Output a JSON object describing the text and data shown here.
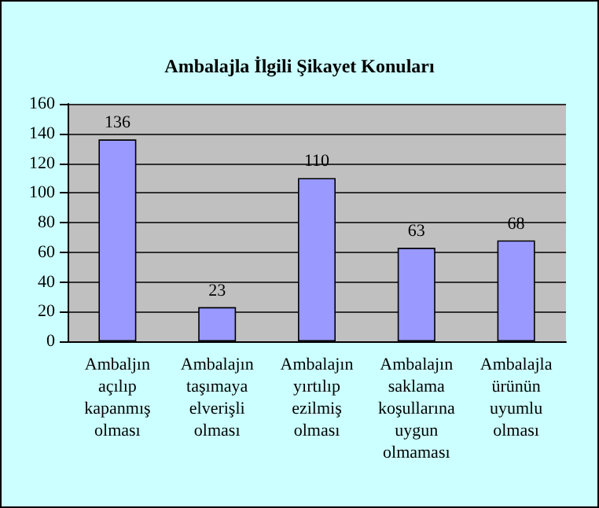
{
  "chart_data": {
    "type": "bar",
    "title": "Ambalajla İlgili Şikayet Konuları",
    "categories": [
      "Ambaljın\naçılıp\nkapanmış\nolması",
      "Ambalajın\ntaşımaya\nelverişli\nolması",
      "Ambalajın\nyırtılıp\nezilmiş\nolması",
      "Ambalajın\nsaklama\nkoşullarına\nuygun\nolmaması",
      "Ambalajla\nürünün\nuyumlu\nolması"
    ],
    "values": [
      136,
      23,
      110,
      63,
      68
    ],
    "color": "#9999ff",
    "data_labels": true,
    "ylim": [
      0,
      160
    ],
    "yticks": [
      0,
      20,
      40,
      60,
      80,
      100,
      120,
      140,
      160
    ],
    "grid": "y"
  }
}
